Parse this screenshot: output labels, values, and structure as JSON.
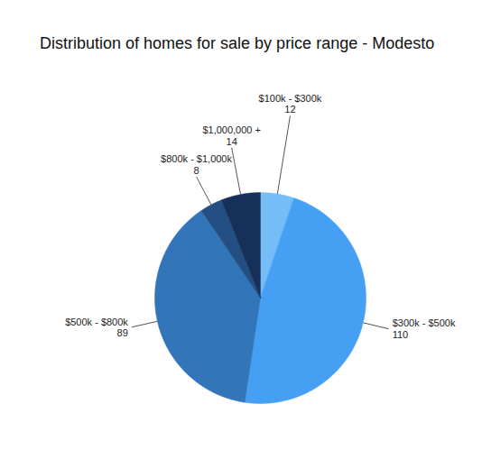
{
  "chart_data": {
    "type": "pie",
    "title": "Distribution of homes for sale by price range - Modesto",
    "categories": [
      "$100k - $300k",
      "$300k - $500k",
      "$500k - $800k",
      "$800k - $1,000k",
      "$1,000,000 +"
    ],
    "values": [
      12,
      110,
      89,
      8,
      14
    ],
    "colors": [
      "#74bdf7",
      "#459ff2",
      "#3375b9",
      "#244f82",
      "#16305a"
    ],
    "data_labels": true
  }
}
